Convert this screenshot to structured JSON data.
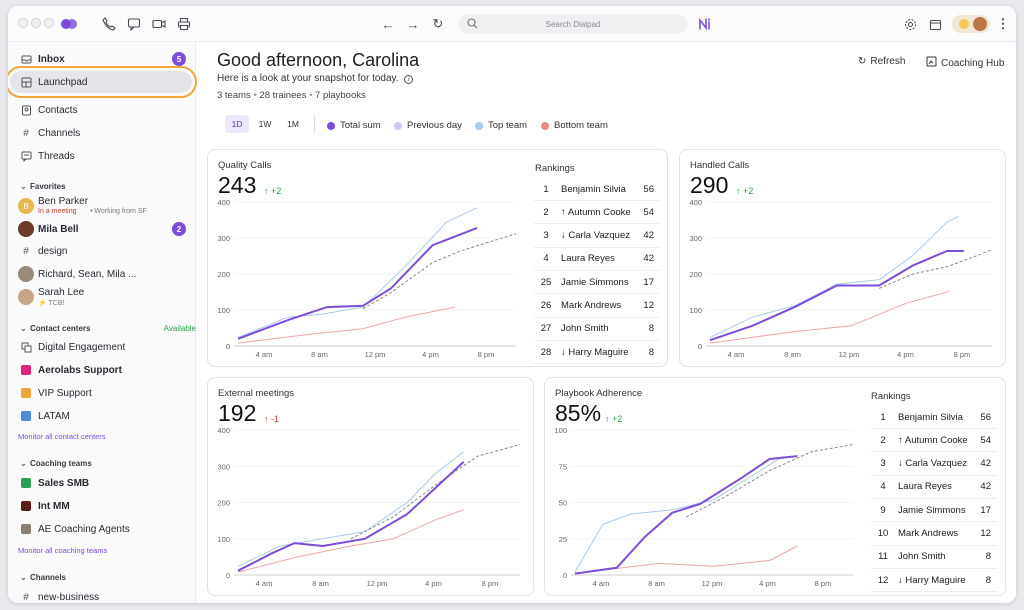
{
  "search": {
    "placeholder": "Search Dialpad"
  },
  "sidebar": {
    "inbox": {
      "label": "Inbox",
      "badge": "5"
    },
    "launchpad": "Launchpad",
    "contacts": "Contacts",
    "channels": "Channels",
    "threads": "Threads",
    "favorites_label": "Favorites",
    "favorites": [
      {
        "name": "Ben Parker",
        "status": "In a meeting",
        "note": "• Working from SF",
        "initial": "B"
      },
      {
        "name": "Mila Bell",
        "badge": "2"
      },
      {
        "name": "design"
      },
      {
        "name": "Richard, Sean, Mila ..."
      },
      {
        "name": "Sarah Lee",
        "status": "⚡ TCB!"
      }
    ],
    "contact_centers_label": "Contact centers",
    "availability": "Available",
    "contact_centers": [
      {
        "name": "Digital Engagement"
      },
      {
        "name": "Aerolabs Support"
      },
      {
        "name": "VIP Support"
      },
      {
        "name": "LATAM"
      }
    ],
    "monitor_cc": "Monitor all contact centers",
    "coaching_label": "Coaching teams",
    "coaching_teams": [
      {
        "name": "Sales SMB"
      },
      {
        "name": "Int MM"
      },
      {
        "name": "AE Coaching Agents"
      }
    ],
    "monitor_ct": "Monitor all coaching teams",
    "channels_label": "Channels",
    "channels_items": [
      {
        "name": "new-business"
      }
    ]
  },
  "header": {
    "greeting": "Good afternoon, Carolina",
    "snapshot": "Here is a look at your snapshot for today.",
    "stats": [
      "3 teams",
      "28 trainees",
      "7 playbooks"
    ],
    "refresh": "Refresh",
    "coaching_hub": "Coaching Hub"
  },
  "timeframes": [
    "1D",
    "1W",
    "1M"
  ],
  "legend": [
    {
      "label": "Total sum",
      "color": "#7c4dd8"
    },
    {
      "label": "Previous day",
      "color": "#d6c6f4"
    },
    {
      "label": "Top team",
      "color": "#a9cbee"
    },
    {
      "label": "Bottom team",
      "color": "#e88b86"
    }
  ],
  "cards": {
    "quality": {
      "title": "Quality Calls",
      "value": "243",
      "delta": "↑ +2"
    },
    "handled": {
      "title": "Handled Calls",
      "value": "290",
      "delta": "↑ +2"
    },
    "external": {
      "title": "External meetings",
      "value": "192",
      "delta": "↑ -1"
    },
    "playbook": {
      "title": "Playbook Adherence",
      "value": "85%",
      "delta": "↑ +2"
    }
  },
  "rankings_label": "Rankings",
  "rankings": [
    {
      "pos": "1",
      "name": "Benjamin Silvia",
      "score": "56"
    },
    {
      "pos": "2",
      "name": "↑ Autumn Cooke",
      "score": "54"
    },
    {
      "pos": "3",
      "name": "↓ Carla Vazquez",
      "score": "42"
    },
    {
      "pos": "4",
      "name": "Laura Reyes",
      "score": "42"
    },
    {
      "pos": "25",
      "name": "Jamie Simmons",
      "score": "17"
    },
    {
      "pos": "26",
      "name": "Mark Andrews",
      "score": "12"
    },
    {
      "pos": "27",
      "name": "John Smith",
      "score": "8"
    },
    {
      "pos": "28",
      "name": "↓ Harry Maguire",
      "score": "8"
    }
  ],
  "rankings2": [
    {
      "pos": "1",
      "name": "Benjamin Silvia",
      "score": "56"
    },
    {
      "pos": "2",
      "name": "↑ Autumn Cooke",
      "score": "54"
    },
    {
      "pos": "3",
      "name": "↓ Carla Vazquez",
      "score": "42"
    },
    {
      "pos": "4",
      "name": "Laura Reyes",
      "score": "42"
    },
    {
      "pos": "9",
      "name": "Jamie Simmons",
      "score": "17"
    },
    {
      "pos": "10",
      "name": "Mark Andrews",
      "score": "12"
    },
    {
      "pos": "11",
      "name": "John Smith",
      "score": "8"
    },
    {
      "pos": "12",
      "name": "↓ Harry Maguire",
      "score": "8"
    }
  ],
  "axis": {
    "y": [
      "0",
      "100",
      "200",
      "300",
      "400"
    ],
    "x": [
      "4 am",
      "8 am",
      "12 pm",
      "4 pm",
      "8 pm"
    ]
  },
  "chart_data": [
    {
      "type": "line",
      "title": "Quality Calls",
      "x": [
        "4 am",
        "8 am",
        "12 pm",
        "4 pm",
        "8 pm"
      ],
      "ylim": [
        0,
        400
      ]
    },
    {
      "type": "line",
      "title": "Handled Calls",
      "x": [
        "4 am",
        "8 am",
        "12 pm",
        "4 pm",
        "8 pm"
      ],
      "ylim": [
        0,
        400
      ]
    },
    {
      "type": "line",
      "title": "External meetings",
      "x": [
        "4 am",
        "8 am",
        "12 pm",
        "4 pm",
        "8 pm"
      ],
      "ylim": [
        0,
        400
      ]
    },
    {
      "type": "line",
      "title": "Playbook Adherence",
      "x": [
        "4 am",
        "8 am",
        "12 pm",
        "4 pm",
        "8 pm"
      ],
      "ylim": [
        0,
        100
      ]
    }
  ]
}
